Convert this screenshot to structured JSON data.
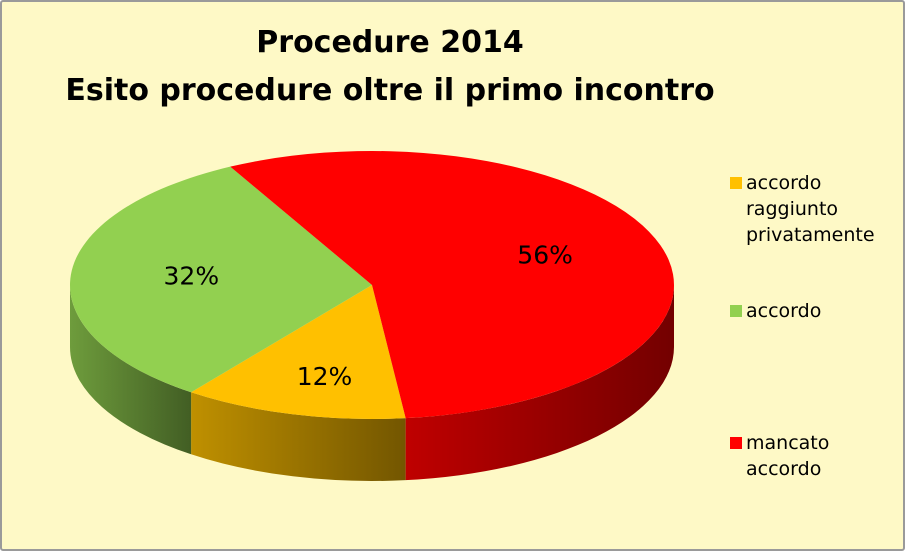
{
  "chart_data": {
    "type": "pie",
    "title": "Procedure 2014",
    "subtitle": "Esito procedure oltre il primo incontro",
    "categories": [
      "accordo raggiunto privatamente",
      "accordo",
      "mancato accordo"
    ],
    "values": [
      12,
      32,
      56
    ],
    "value_labels": [
      "12%",
      "32%",
      "56%"
    ],
    "colors": [
      "#FFC000",
      "#92D050",
      "#FF0000"
    ],
    "legend": "right"
  }
}
